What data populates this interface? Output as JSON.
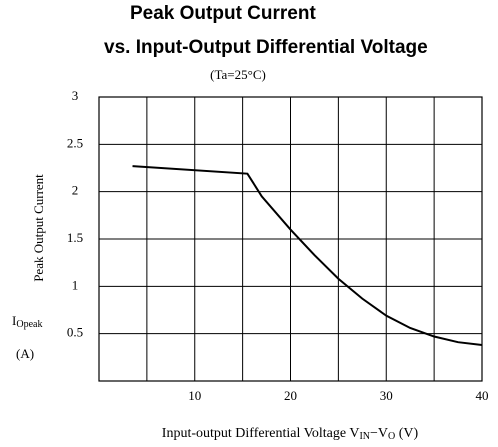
{
  "chart_data": {
    "type": "line",
    "title": [
      "Peak Output Current",
      "vs. Input-Output Differential Voltage"
    ],
    "subtitle": "(Ta=25°C)",
    "y_label": "Peak Output Current",
    "y_symbol": [
      "I",
      "Opeak"
    ],
    "y_unit": "(A)",
    "x_label_parts": [
      "Input-output Differential Voltage V",
      "IN",
      "−V",
      "O",
      " (V)"
    ],
    "x": [
      3.5,
      15.5,
      17,
      20,
      22.5,
      25,
      27.5,
      30,
      32.5,
      35,
      37.5,
      40
    ],
    "series": [
      {
        "color": "#000000",
        "values": [
          2.27,
          2.19,
          1.95,
          1.6,
          1.33,
          1.08,
          0.87,
          0.69,
          0.56,
          0.47,
          0.41,
          0.38
        ]
      }
    ],
    "xlim": [
      0,
      40
    ],
    "xticks": [
      10,
      20,
      30,
      40
    ],
    "xgrid": [
      5,
      15,
      25,
      35
    ],
    "ylim": [
      0,
      3
    ],
    "yticks": [
      0.5,
      1,
      1.5,
      2,
      2.5,
      3
    ],
    "grid": true
  }
}
